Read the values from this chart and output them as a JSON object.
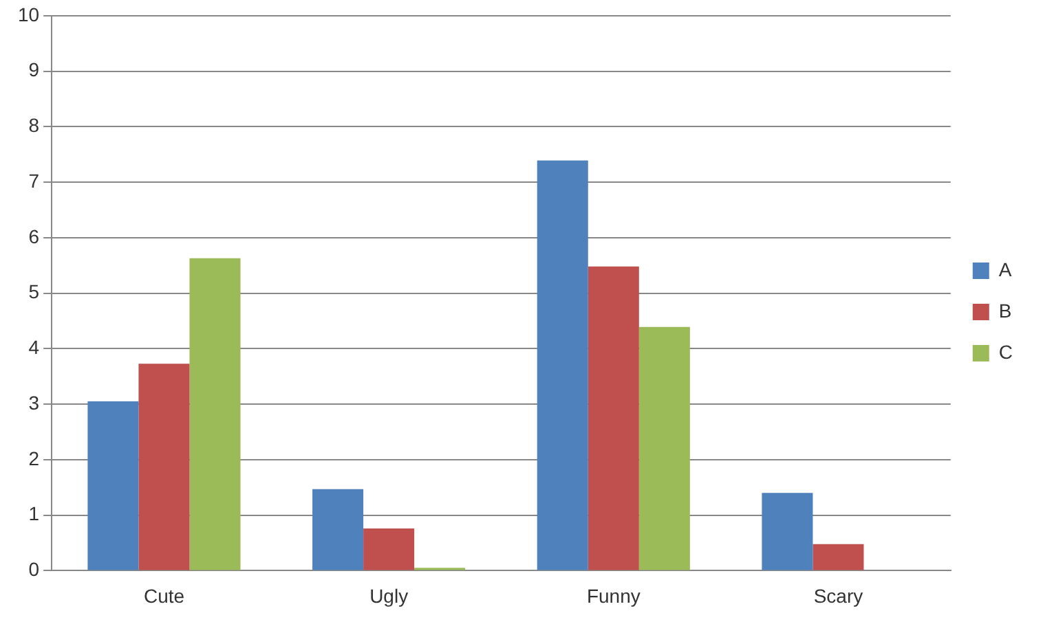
{
  "chart_data": {
    "type": "bar",
    "categories": [
      "Cute",
      "Ugly",
      "Funny",
      "Scary"
    ],
    "series": [
      {
        "name": "A",
        "color": "#4f81bd",
        "values": [
          3.05,
          1.47,
          7.39,
          1.4
        ]
      },
      {
        "name": "B",
        "color": "#c0504d",
        "values": [
          3.73,
          0.76,
          5.48,
          0.48
        ]
      },
      {
        "name": "C",
        "color": "#9bbb59",
        "values": [
          5.63,
          0.05,
          4.39,
          0
        ]
      }
    ],
    "ylim": [
      0,
      10
    ],
    "yticks": [
      0,
      1,
      2,
      3,
      4,
      5,
      6,
      7,
      8,
      9,
      10
    ],
    "grid": "y",
    "legend": "right"
  }
}
